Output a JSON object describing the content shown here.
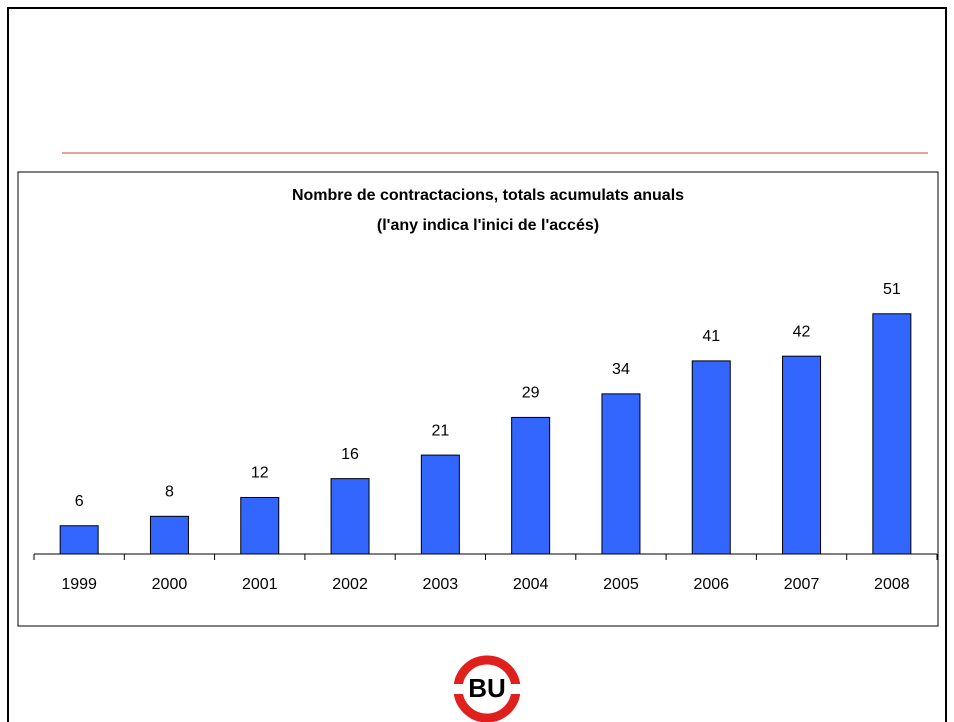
{
  "chart_data": {
    "type": "bar",
    "title": "Nombre de contractacions, totals acumulats anuals",
    "subtitle": "(l'any indica l'inici de l'accés)",
    "categories": [
      "1999",
      "2000",
      "2001",
      "2002",
      "2003",
      "2004",
      "2005",
      "2006",
      "2007",
      "2008"
    ],
    "values": [
      6,
      8,
      12,
      16,
      21,
      29,
      34,
      41,
      42,
      51
    ],
    "color": "#3366ff"
  },
  "logo": "BU"
}
